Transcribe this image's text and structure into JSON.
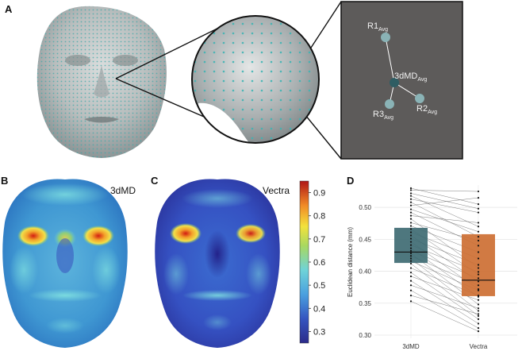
{
  "panels": {
    "a": {
      "label": "A",
      "points": [
        {
          "name": "R1",
          "sub": "Avg"
        },
        {
          "name": "3dMD",
          "sub": "Avg"
        },
        {
          "name": "R2",
          "sub": "Avg"
        },
        {
          "name": "R3",
          "sub": "Avg"
        }
      ]
    },
    "b": {
      "label": "B",
      "title": "3dMD"
    },
    "c": {
      "label": "C",
      "title": "Vectra"
    },
    "d": {
      "label": "D"
    }
  },
  "colorbar": {
    "ticks": [
      "0.9",
      "0.8",
      "0.7",
      "0.6",
      "0.5",
      "0.4",
      "0.3"
    ],
    "min": 0.25,
    "max": 0.95
  },
  "chart_data": {
    "type": "box",
    "categories": [
      "3dMD",
      "Vectra"
    ],
    "ylabel": "Euclidean distance (mm)",
    "yticks": [
      "0.50",
      "0.45",
      "0.40",
      "0.35",
      "0.30"
    ],
    "ylim": [
      0.295,
      0.535
    ],
    "boxes": [
      {
        "name": "3dMD",
        "q1": 0.413,
        "median": 0.43,
        "q3": 0.468,
        "color": "#3f6b73"
      },
      {
        "name": "Vectra",
        "q1": 0.361,
        "median": 0.386,
        "q3": 0.458,
        "color": "#cd6f33"
      }
    ],
    "paired": [
      [
        0.53,
        0.505
      ],
      [
        0.527,
        0.525
      ],
      [
        0.522,
        0.498
      ],
      [
        0.518,
        0.47
      ],
      [
        0.513,
        0.492
      ],
      [
        0.508,
        0.454
      ],
      [
        0.503,
        0.515
      ],
      [
        0.497,
        0.462
      ],
      [
        0.492,
        0.44
      ],
      [
        0.487,
        0.476
      ],
      [
        0.482,
        0.405
      ],
      [
        0.476,
        0.448
      ],
      [
        0.471,
        0.43
      ],
      [
        0.466,
        0.395
      ],
      [
        0.461,
        0.42
      ],
      [
        0.456,
        0.384
      ],
      [
        0.451,
        0.41
      ],
      [
        0.446,
        0.372
      ],
      [
        0.441,
        0.399
      ],
      [
        0.436,
        0.36
      ],
      [
        0.432,
        0.389
      ],
      [
        0.428,
        0.348
      ],
      [
        0.424,
        0.378
      ],
      [
        0.42,
        0.338
      ],
      [
        0.416,
        0.37
      ],
      [
        0.412,
        0.33
      ],
      [
        0.405,
        0.362
      ],
      [
        0.398,
        0.325
      ],
      [
        0.392,
        0.355
      ],
      [
        0.385,
        0.318
      ],
      [
        0.378,
        0.342
      ],
      [
        0.37,
        0.311
      ],
      [
        0.362,
        0.333
      ],
      [
        0.353,
        0.306
      ]
    ],
    "grid": true
  }
}
